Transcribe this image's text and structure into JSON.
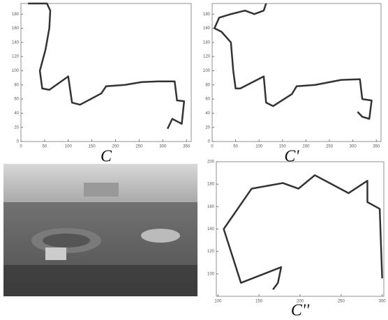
{
  "chart_data": [
    {
      "type": "line",
      "caption": "C",
      "x": [
        15,
        55,
        62,
        60,
        52,
        40,
        45,
        60,
        100,
        108,
        125,
        170,
        180,
        220,
        255,
        290,
        325,
        330,
        345,
        340,
        320,
        310
      ],
      "series": [
        {
          "color": "#333333",
          "values": [
            195,
            195,
            185,
            160,
            130,
            100,
            75,
            73,
            92,
            55,
            52,
            68,
            78,
            80,
            84,
            85,
            85,
            58,
            57,
            25,
            32,
            18
          ]
        }
      ],
      "xlim": [
        0,
        360
      ],
      "ylim": [
        0,
        195
      ],
      "xticks": [
        0,
        50,
        100,
        150,
        200,
        250,
        300,
        350
      ],
      "yticks": [
        0,
        20,
        40,
        60,
        80,
        100,
        120,
        140,
        160,
        180
      ]
    },
    {
      "type": "line",
      "caption": "C'",
      "x": [
        115,
        110,
        90,
        70,
        40,
        15,
        5,
        20,
        40,
        45,
        50,
        60,
        110,
        115,
        130,
        170,
        180,
        220,
        275,
        315,
        320,
        340,
        335,
        320,
        310
      ],
      "series": [
        {
          "color": "#333333",
          "values": [
            195,
            185,
            180,
            185,
            180,
            175,
            160,
            155,
            140,
            100,
            75,
            75,
            92,
            55,
            50,
            67,
            78,
            80,
            87,
            88,
            60,
            58,
            32,
            35,
            42
          ]
        }
      ],
      "xlim": [
        0,
        360
      ],
      "ylim": [
        0,
        195
      ],
      "xticks": [
        0,
        50,
        100,
        150,
        200,
        250,
        300,
        350
      ],
      "yticks": [
        0,
        20,
        40,
        60,
        80,
        100,
        120,
        140,
        160,
        180
      ]
    },
    {
      "type": "line",
      "caption": "C''",
      "x": [
        167,
        173,
        177,
        128,
        107,
        141,
        179,
        198,
        218,
        259,
        282,
        282,
        297,
        300
      ],
      "series": [
        {
          "color": "#333333",
          "values": [
            86,
            92,
            106,
            92,
            140,
            176,
            181,
            176,
            188,
            172,
            183,
            164,
            158,
            96
          ]
        }
      ],
      "xlim": [
        98,
        302
      ],
      "ylim": [
        80,
        200
      ],
      "xticks": [
        100,
        150,
        200,
        250,
        300
      ],
      "yticks": [
        100,
        120,
        140,
        160,
        180,
        200
      ]
    }
  ]
}
